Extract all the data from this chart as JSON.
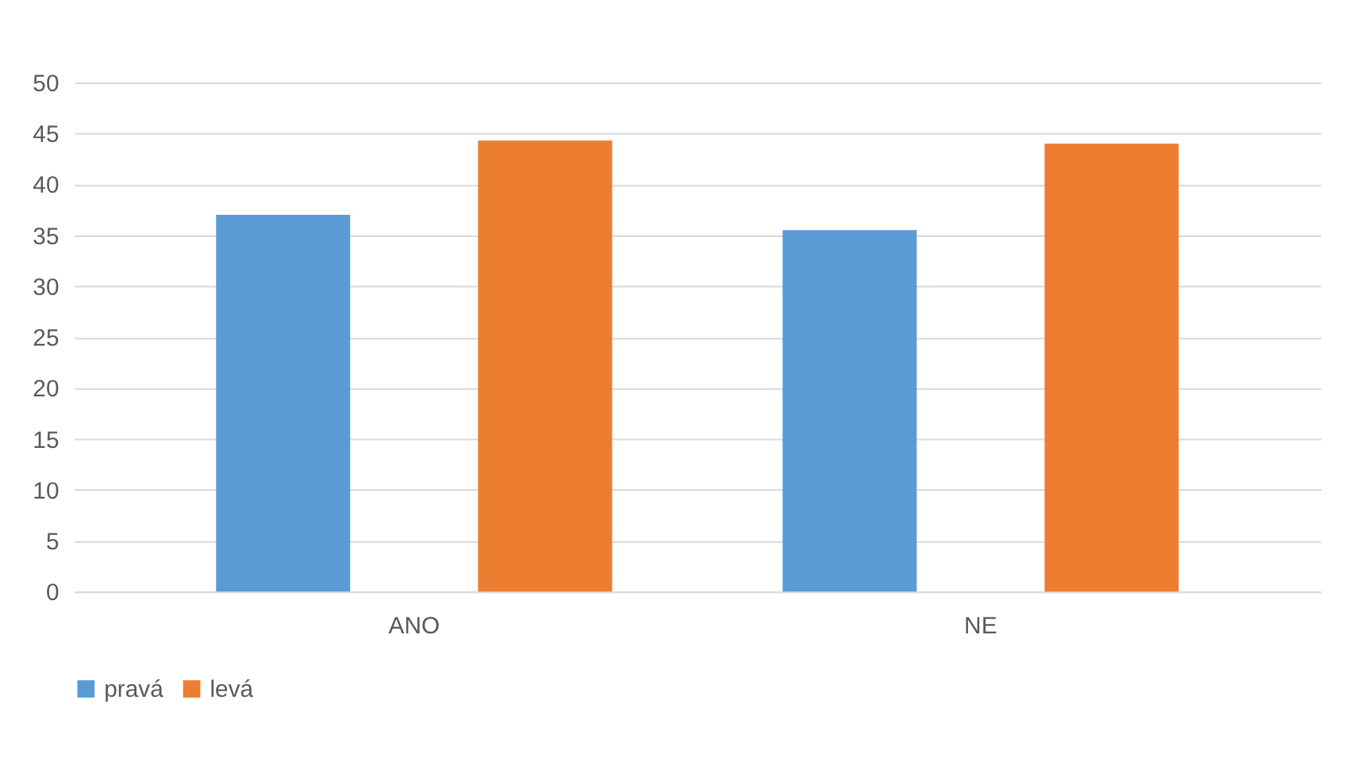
{
  "chart_data": {
    "type": "bar",
    "categories": [
      "ANO",
      "NE"
    ],
    "series": [
      {
        "name": "pravá",
        "color": "#5b9bd5",
        "values": [
          37,
          35.5
        ]
      },
      {
        "name": "levá",
        "color": "#ed7d31",
        "values": [
          44.3,
          44
        ]
      }
    ],
    "ylim": [
      0,
      50
    ],
    "yticks": [
      0,
      5,
      10,
      15,
      20,
      25,
      30,
      35,
      40,
      45,
      50
    ],
    "grid": "y",
    "legend": "bottom"
  }
}
